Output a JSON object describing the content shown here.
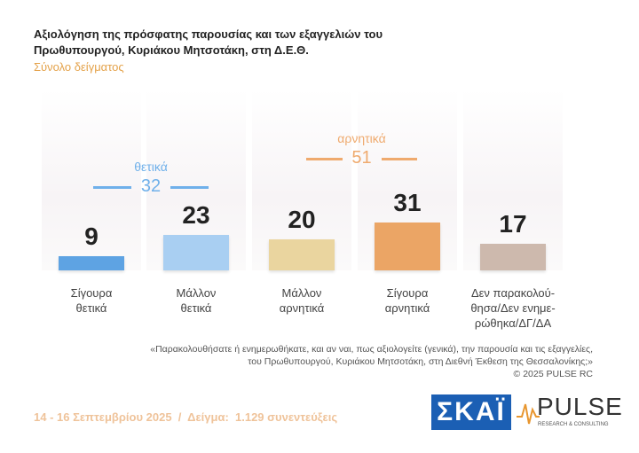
{
  "chart_data": {
    "type": "bar",
    "title": [
      "Αξιολόγηση της πρόσφατης παρουσίας και των εξαγγελιών του",
      "Πρωθυπουργού, Κυριάκου Μητσοτάκη, στη Δ.Ε.Θ."
    ],
    "subtitle": "Σύνολο δείγματος",
    "categories": [
      "Σίγουρα\nθετικά",
      "Μάλλον\nθετικά",
      "Μάλλον\nαρνητικά",
      "Σίγουρα\nαρνητικά",
      "Δεν παρακολού-\nθησα/Δεν ενημε-\nρώθηκα/ΔΓ/ΔΑ"
    ],
    "values": [
      9,
      23,
      20,
      31,
      17
    ],
    "colors": [
      "#5ea3e3",
      "#a9cff2",
      "#ead59f",
      "#eba565",
      "#cdb9ad"
    ],
    "groups": [
      {
        "label": "θετικά",
        "value": 32,
        "color": "#6fb0ea"
      },
      {
        "label": "αρνητικά",
        "value": 51,
        "color": "#efaa6e"
      }
    ],
    "footnote": [
      "«Παρακολουθήσατε ή ενημερωθήκατε, και αν ναι, πως αξιολογείτε (γενικά), την παρουσία και τις εξαγγελίες,",
      "του Πρωθυπουργού, Κυριάκου Μητσοτάκη, στη Διεθνή Έκθεση της Θεσσαλονίκης;»",
      "©  2025  PULSE RC"
    ],
    "date_line": "14 - 16 Σεπτεμβρίου 2025  /  Δείγμα:  1.129 συνεντεύξεις",
    "logos": {
      "skai": "ΣΚΑΪ",
      "pulse": "PULSE",
      "pulse_tag": "RESEARCH & CONSULTING"
    }
  }
}
